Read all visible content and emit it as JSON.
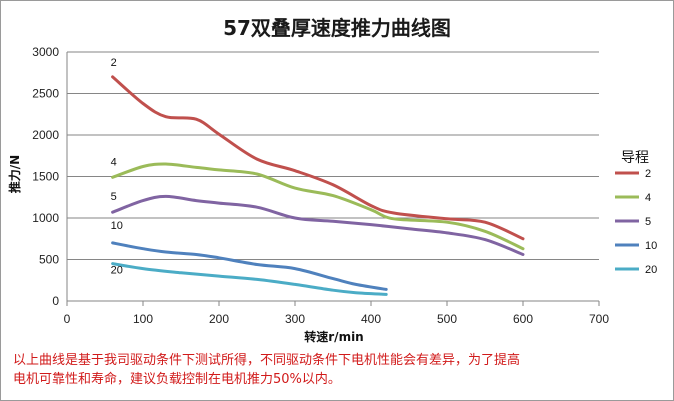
{
  "chart_data": {
    "type": "line",
    "title": "57双叠厚速度推力曲线图",
    "xlabel": "转速r/min",
    "ylabel": "推力/N",
    "xlim": [
      0,
      700
    ],
    "ylim": [
      0,
      3000
    ],
    "xticks": [
      0,
      100,
      200,
      300,
      400,
      500,
      600,
      700
    ],
    "yticks": [
      0,
      500,
      1000,
      1500,
      2000,
      2500,
      3000
    ],
    "grid": "horizontal",
    "legend_title": "导程",
    "legend_position": "right",
    "series": [
      {
        "name": "2",
        "color": "#c0504d",
        "label": "2",
        "x": [
          60,
          100,
          130,
          170,
          200,
          250,
          300,
          350,
          400,
          430,
          500,
          550,
          600
        ],
        "y": [
          2700,
          2380,
          2220,
          2190,
          2010,
          1710,
          1570,
          1400,
          1150,
          1060,
          990,
          950,
          750
        ]
      },
      {
        "name": "4",
        "color": "#9bbb59",
        "label": "4",
        "x": [
          60,
          100,
          130,
          170,
          200,
          250,
          300,
          350,
          400,
          430,
          500,
          550,
          600
        ],
        "y": [
          1490,
          1620,
          1650,
          1610,
          1580,
          1530,
          1360,
          1270,
          1100,
          990,
          950,
          840,
          630
        ]
      },
      {
        "name": "5",
        "color": "#8064a2",
        "label": "5",
        "x": [
          60,
          100,
          130,
          170,
          200,
          250,
          300,
          350,
          400,
          450,
          500,
          550,
          600
        ],
        "y": [
          1070,
          1210,
          1260,
          1210,
          1180,
          1130,
          1000,
          960,
          920,
          870,
          820,
          740,
          560
        ]
      },
      {
        "name": "10",
        "color": "#4f81bd",
        "label": "10",
        "x": [
          60,
          100,
          130,
          170,
          200,
          250,
          300,
          350,
          380,
          420
        ],
        "y": [
          700,
          630,
          590,
          560,
          520,
          440,
          390,
          270,
          200,
          140
        ]
      },
      {
        "name": "20",
        "color": "#4bacc6",
        "label": "20",
        "x": [
          60,
          100,
          150,
          200,
          250,
          300,
          350,
          380,
          420
        ],
        "y": [
          450,
          390,
          340,
          300,
          260,
          200,
          130,
          100,
          80
        ]
      }
    ]
  },
  "note": {
    "line1": "以上曲线是基于我司驱动条件下测试所得，不同驱动条件下电机性能会有差异，为了提高",
    "line2": "电机可靠性和寿命，建议负载控制在电机推力50%以内。"
  }
}
